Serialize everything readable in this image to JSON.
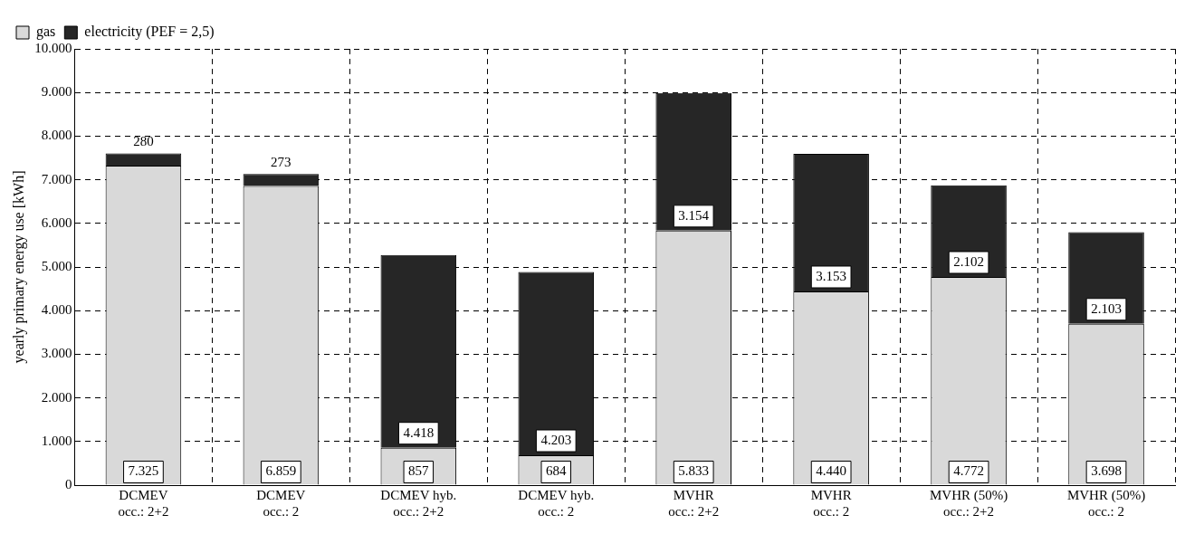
{
  "chart_data": {
    "type": "bar",
    "stacked": true,
    "ylabel": "yearly primary energy use [kWh]",
    "categories": [
      "DCMEV\nocc.: 2+2",
      "DCMEV\nocc.: 2",
      "DCMEV hyb.\nocc.: 2+2",
      "DCMEV hyb.\nocc.: 2",
      "MVHR\nocc.: 2+2",
      "MVHR\nocc.: 2",
      "MVHR (50%)\nocc.: 2+2",
      "MVHR (50%)\nocc.: 2"
    ],
    "series": [
      {
        "name": "gas",
        "color": "#d9d9d9",
        "values": [
          7325,
          6859,
          857,
          684,
          5833,
          4440,
          4772,
          3698
        ],
        "value_labels": [
          "7.325",
          "6.859",
          "857",
          "684",
          "5.833",
          "4.440",
          "4.772",
          "3.698"
        ]
      },
      {
        "name": "electricity (PEF = 2,5)",
        "color": "#262626",
        "values": [
          280,
          273,
          4418,
          4203,
          3154,
          3153,
          2102,
          2103
        ],
        "value_labels": [
          "280",
          "273",
          "4.418",
          "4.203",
          "3.154",
          "3.153",
          "2.102",
          "2.103"
        ]
      }
    ],
    "ylim": [
      0,
      10000
    ],
    "yticks": [
      {
        "value": 0,
        "label": "0"
      },
      {
        "value": 1000,
        "label": "1.000"
      },
      {
        "value": 2000,
        "label": "2.000"
      },
      {
        "value": 3000,
        "label": "3.000"
      },
      {
        "value": 4000,
        "label": "4.000"
      },
      {
        "value": 5000,
        "label": "5.000"
      },
      {
        "value": 6000,
        "label": "6.000"
      },
      {
        "value": 7000,
        "label": "7.000"
      },
      {
        "value": 8000,
        "label": "8.000"
      },
      {
        "value": 9000,
        "label": "9.000"
      },
      {
        "value": 10000,
        "label": "10.000"
      }
    ],
    "grid": true,
    "legend": "top left"
  }
}
